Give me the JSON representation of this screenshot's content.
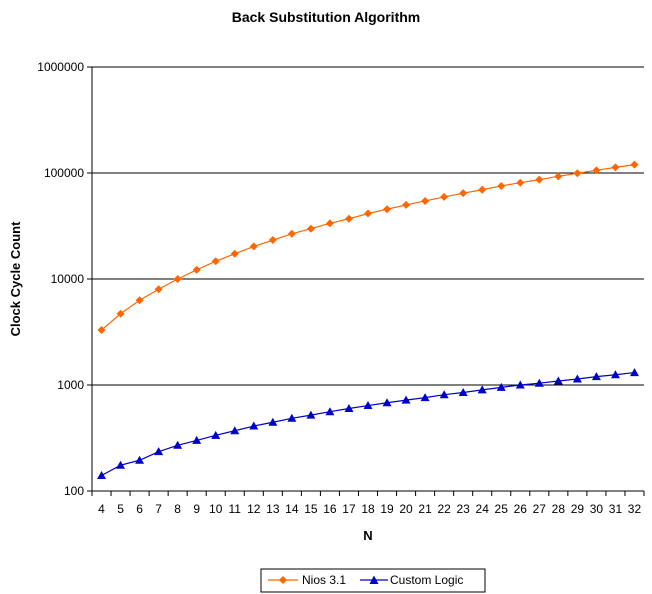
{
  "chart_data": {
    "type": "line",
    "title": "Back Substitution Algorithm",
    "xlabel": "N",
    "ylabel": "Clock Cycle Count",
    "yscale": "log",
    "ylim": [
      100,
      1000000
    ],
    "y_ticks": [
      "100",
      "1000",
      "10000",
      "100000",
      "1000000"
    ],
    "grid": "horizontal major gridlines",
    "legend_position": "bottom",
    "categories": [
      4,
      5,
      6,
      7,
      8,
      9,
      10,
      11,
      12,
      13,
      14,
      15,
      16,
      17,
      18,
      19,
      20,
      21,
      22,
      23,
      24,
      25,
      26,
      27,
      28,
      29,
      30,
      31,
      32
    ],
    "series": [
      {
        "name": "Nios 3.1",
        "color": "#FF6600",
        "marker": "diamond",
        "values": [
          3300,
          4700,
          6300,
          8000,
          10000,
          12200,
          14700,
          17300,
          20300,
          23300,
          26700,
          29800,
          33500,
          37000,
          41500,
          45500,
          50000,
          54500,
          59500,
          64500,
          69500,
          75500,
          81000,
          86500,
          93000,
          99500,
          106000,
          113000,
          120000
        ]
      },
      {
        "name": "Custom Logic",
        "color": "#0000CC",
        "marker": "triangle",
        "values": [
          140,
          175,
          195,
          235,
          270,
          300,
          335,
          370,
          410,
          445,
          485,
          520,
          560,
          600,
          640,
          680,
          720,
          760,
          810,
          850,
          900,
          950,
          1000,
          1040,
          1090,
          1140,
          1200,
          1250,
          1310
        ]
      }
    ]
  }
}
